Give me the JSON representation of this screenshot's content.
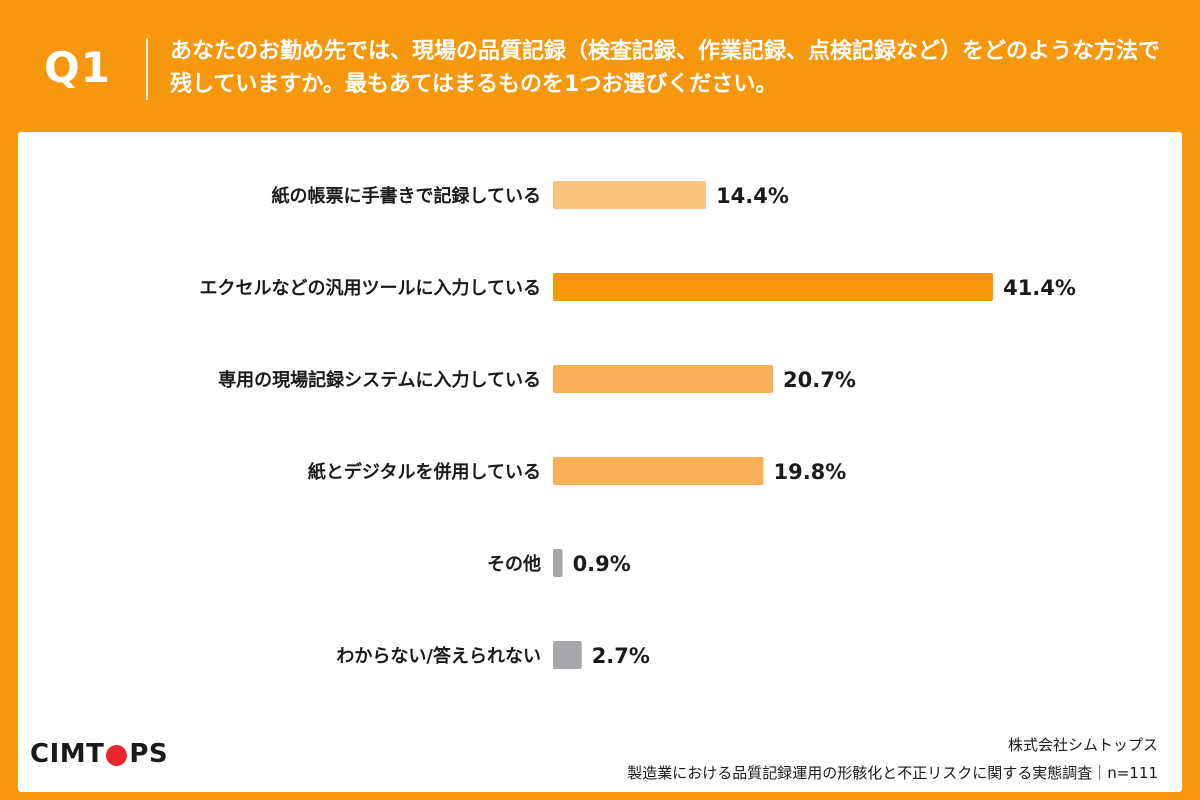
{
  "header": {
    "q_label": "Q1",
    "question": "あなたのお勤め先では、現場の品質記録（検査記録、作業記録、点検記録など）をどのような方法で残していますか。最もあてはまるものを1つお選びください。"
  },
  "chart_data": {
    "type": "bar",
    "orientation": "horizontal",
    "categories": [
      "紙の帳票に手書きで記録している",
      "エクセルなどの汎用ツールに入力している",
      "専用の現場記録システムに入力している",
      "紙とデジタルを併用している",
      "その他",
      "わからない/答えられない"
    ],
    "values": [
      14.4,
      41.4,
      20.7,
      19.8,
      0.9,
      2.7
    ],
    "value_labels": [
      "14.4%",
      "41.4%",
      "20.7%",
      "19.8%",
      "0.9%",
      "2.7%"
    ],
    "bar_colors": [
      "#F9C47E",
      "#F7970E",
      "#F9B057",
      "#F9B057",
      "#A8A6AA",
      "#A8A6AA"
    ],
    "xlim": [
      0,
      45
    ],
    "grid": false,
    "legend": "none"
  },
  "footer": {
    "brand": "CIMTOPS",
    "company": "株式会社シムトップス",
    "survey": "製造業における品質記録運用の形骸化と不正リスクに関する実態調査｜n=111"
  },
  "colors": {
    "accent": "#F7970E",
    "brand_dot": "#E9262C"
  }
}
